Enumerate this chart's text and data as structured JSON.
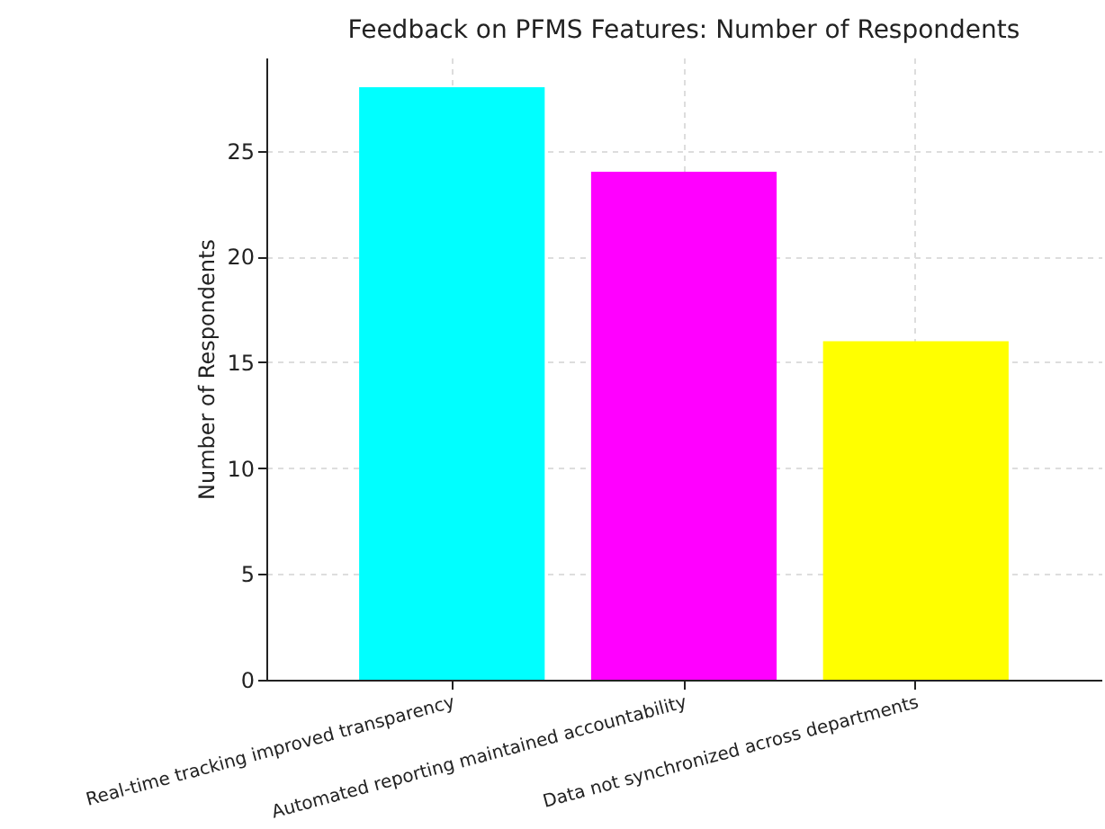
{
  "chart_data": {
    "type": "bar",
    "title": "Feedback on PFMS Features: Number of Respondents",
    "ylabel": "Number of Respondents",
    "categories": [
      "Real-time tracking improved transparency",
      "Automated reporting maintained accountability",
      "Data not synchronized across departments"
    ],
    "values": [
      28,
      24,
      16
    ],
    "colors": [
      "#00ffff",
      "#ff00ff",
      "#ffff00"
    ],
    "ylim": [
      0,
      29.4
    ],
    "yticks": [
      0,
      5,
      10,
      15,
      20,
      25
    ],
    "grid": true
  }
}
